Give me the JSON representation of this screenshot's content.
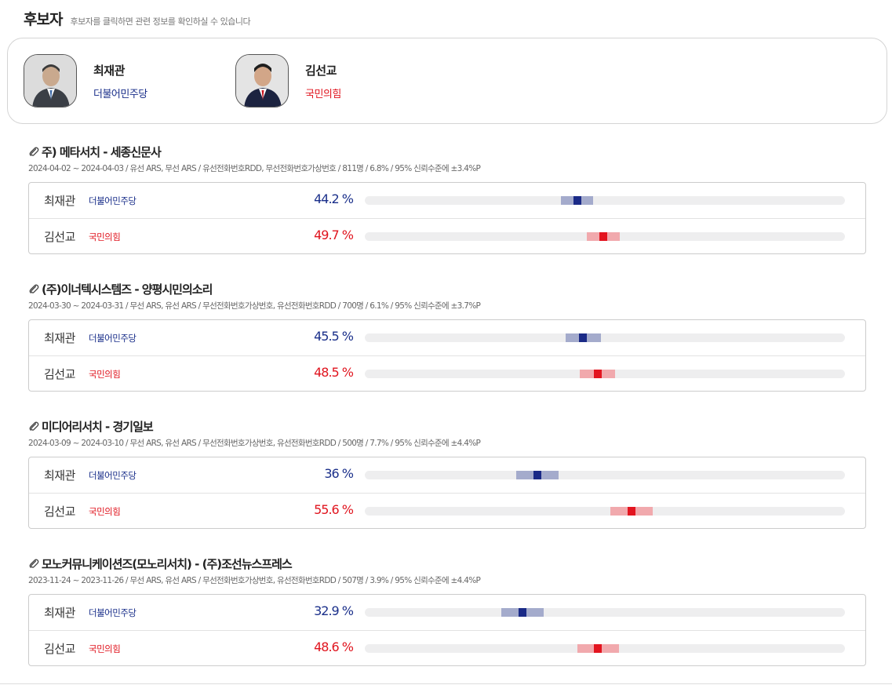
{
  "header": {
    "title": "후보자",
    "subtitle": "후보자를 클릭하면 관련 정보를 확인하실 수 있습니다"
  },
  "colors": {
    "blue": "#1a2f8a",
    "red": "#e0141e"
  },
  "candidates": [
    {
      "name": "최재관",
      "party": "더불어민주당",
      "party_color": "blue",
      "photo": "candidate-photo"
    },
    {
      "name": "김선교",
      "party": "국민의힘",
      "party_color": "red",
      "photo": "candidate-photo"
    }
  ],
  "polls": [
    {
      "icon": "paperclip-icon",
      "title": "주) 메타서치 - 세종신문사",
      "meta": "2024-04-02 ~ 2024-04-03 / 유선 ARS, 무선 ARS / 유선전화번호RDD, 무선전화번호가상번호 / 811명 / 6.8% / 95% 신뢰수준에 ±3.4%P",
      "margin": 3.4,
      "results": [
        {
          "name": "최재관",
          "party": "더불어민주당",
          "color": "blue",
          "value": 44.2,
          "label": "44.2 %"
        },
        {
          "name": "김선교",
          "party": "국민의힘",
          "color": "red",
          "value": 49.7,
          "label": "49.7 %"
        }
      ]
    },
    {
      "icon": "paperclip-icon",
      "title": "(주)이너텍시스템즈 - 양평시민의소리",
      "meta": "2024-03-30 ~ 2024-03-31 / 무선 ARS, 유선 ARS / 무선전화번호가상번호, 유선전화번호RDD / 700명 / 6.1% / 95% 신뢰수준에 ±3.7%P",
      "margin": 3.7,
      "results": [
        {
          "name": "최재관",
          "party": "더불어민주당",
          "color": "blue",
          "value": 45.5,
          "label": "45.5 %"
        },
        {
          "name": "김선교",
          "party": "국민의힘",
          "color": "red",
          "value": 48.5,
          "label": "48.5 %"
        }
      ]
    },
    {
      "icon": "paperclip-icon",
      "title": "미디어리서치 - 경기일보",
      "meta": "2024-03-09 ~ 2024-03-10 / 무선 ARS, 유선 ARS / 무선전화번호가상번호, 유선전화번호RDD / 500명 / 7.7% / 95% 신뢰수준에 ±4.4%P",
      "margin": 4.4,
      "results": [
        {
          "name": "최재관",
          "party": "더불어민주당",
          "color": "blue",
          "value": 36,
          "label": "36 %"
        },
        {
          "name": "김선교",
          "party": "국민의힘",
          "color": "red",
          "value": 55.6,
          "label": "55.6 %"
        }
      ]
    },
    {
      "icon": "paperclip-icon",
      "title": "모노커뮤니케이션즈(모노리서치) - (주)조선뉴스프레스",
      "meta": "2023-11-24 ~ 2023-11-26 / 무선 ARS, 유선 ARS / 무선전화번호가상번호, 유선전화번호RDD / 507명 / 3.9% / 95% 신뢰수준에 ±4.4%P",
      "margin": 4.4,
      "results": [
        {
          "name": "최재관",
          "party": "더불어민주당",
          "color": "blue",
          "value": 32.9,
          "label": "32.9 %"
        },
        {
          "name": "김선교",
          "party": "국민의힘",
          "color": "red",
          "value": 48.6,
          "label": "48.6 %"
        }
      ]
    }
  ]
}
